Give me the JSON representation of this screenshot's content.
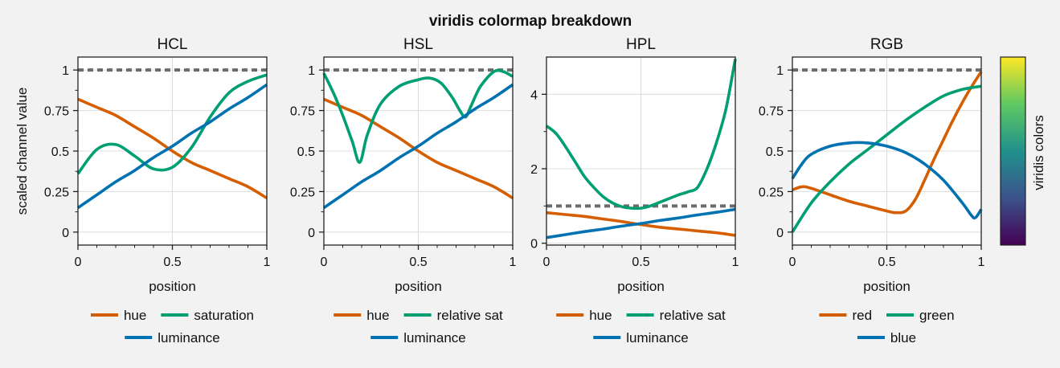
{
  "figure": {
    "title": "viridis colormap breakdown",
    "colorbar": {
      "label": "viridis colors",
      "colormap": "viridis",
      "ticks": false
    }
  },
  "colors": {
    "orange": "#d55e00",
    "green": "#009e73",
    "blue": "#0072b2",
    "reference": "#6b6b6b",
    "grid": "#dcdcdc",
    "background": "#f2f2f2",
    "axes_face": "#ffffff"
  },
  "chart_data": [
    {
      "type": "line",
      "title": "HCL",
      "xlabel": "position",
      "ylabel": "scaled channel value",
      "xlim": [
        0,
        1
      ],
      "ylim": [
        -0.08,
        1.08
      ],
      "xticks": [
        0,
        0.5,
        1
      ],
      "xticklabels": [
        "0",
        "0.5",
        "1"
      ],
      "yticks": [
        0,
        0.25,
        0.5,
        0.75,
        1
      ],
      "yticklabels": [
        "0",
        "0.25",
        "0.5",
        "0.75",
        "1"
      ],
      "grid": true,
      "reference_line": 1,
      "legend": "bottom",
      "x": [
        0,
        0.1,
        0.2,
        0.3,
        0.4,
        0.5,
        0.6,
        0.7,
        0.8,
        0.9,
        1
      ],
      "series": [
        {
          "name": "hue",
          "color": "orange",
          "values": [
            0.82,
            0.77,
            0.72,
            0.65,
            0.58,
            0.5,
            0.43,
            0.38,
            0.33,
            0.28,
            0.21
          ]
        },
        {
          "name": "saturation",
          "color": "green",
          "values": [
            0.36,
            0.51,
            0.54,
            0.47,
            0.39,
            0.4,
            0.52,
            0.71,
            0.86,
            0.93,
            0.97
          ]
        },
        {
          "name": "luminance",
          "color": "blue",
          "values": [
            0.15,
            0.23,
            0.31,
            0.38,
            0.46,
            0.53,
            0.61,
            0.68,
            0.76,
            0.83,
            0.91
          ]
        }
      ]
    },
    {
      "type": "line",
      "title": "HSL",
      "xlabel": "position",
      "ylabel": "",
      "xlim": [
        0,
        1
      ],
      "ylim": [
        -0.08,
        1.08
      ],
      "xticks": [
        0,
        0.5,
        1
      ],
      "xticklabels": [
        "0",
        "0.5",
        "1"
      ],
      "yticks": [
        0,
        0.25,
        0.5,
        0.75,
        1
      ],
      "yticklabels": [
        "0",
        "0.25",
        "0.5",
        "0.75",
        "1"
      ],
      "grid": true,
      "reference_line": 1,
      "legend": "bottom",
      "x": [
        0,
        0.1,
        0.2,
        0.3,
        0.4,
        0.5,
        0.6,
        0.7,
        0.8,
        0.9,
        1
      ],
      "series": [
        {
          "name": "hue",
          "color": "orange",
          "values": [
            0.82,
            0.77,
            0.72,
            0.65,
            0.58,
            0.5,
            0.43,
            0.38,
            0.33,
            0.28,
            0.21
          ]
        },
        {
          "name": "relative sat",
          "color": "green",
          "x": [
            0,
            0.05,
            0.1,
            0.15,
            0.19,
            0.23,
            0.3,
            0.4,
            0.5,
            0.56,
            0.62,
            0.68,
            0.72,
            0.75,
            0.78,
            0.83,
            0.9,
            0.95,
            1
          ],
          "values": [
            0.98,
            0.86,
            0.72,
            0.56,
            0.43,
            0.6,
            0.79,
            0.9,
            0.94,
            0.95,
            0.92,
            0.83,
            0.75,
            0.71,
            0.78,
            0.9,
            0.99,
            0.99,
            0.96
          ]
        },
        {
          "name": "luminance",
          "color": "blue",
          "values": [
            0.15,
            0.23,
            0.31,
            0.38,
            0.46,
            0.53,
            0.61,
            0.68,
            0.76,
            0.83,
            0.91
          ]
        }
      ]
    },
    {
      "type": "line",
      "title": "HPL",
      "xlabel": "position",
      "ylabel": "",
      "xlim": [
        0,
        1
      ],
      "ylim": [
        -0.05,
        5
      ],
      "xticks": [
        0,
        0.5,
        1
      ],
      "xticklabels": [
        "0",
        "0.5",
        "1"
      ],
      "yticks": [
        0,
        2,
        4
      ],
      "yticklabels": [
        "0",
        "2",
        "4"
      ],
      "grid": true,
      "reference_line": 1,
      "legend": "bottom",
      "x": [
        0,
        0.1,
        0.2,
        0.3,
        0.4,
        0.5,
        0.6,
        0.7,
        0.8,
        0.9,
        1
      ],
      "series": [
        {
          "name": "hue",
          "color": "orange",
          "values": [
            0.82,
            0.77,
            0.72,
            0.65,
            0.58,
            0.5,
            0.43,
            0.38,
            0.33,
            0.28,
            0.21
          ]
        },
        {
          "name": "relative sat",
          "color": "green",
          "x": [
            0,
            0.05,
            0.1,
            0.15,
            0.2,
            0.25,
            0.3,
            0.35,
            0.4,
            0.45,
            0.5,
            0.55,
            0.6,
            0.65,
            0.7,
            0.75,
            0.8,
            0.85,
            0.9,
            0.95,
            1
          ],
          "values": [
            3.15,
            2.95,
            2.6,
            2.2,
            1.8,
            1.5,
            1.25,
            1.08,
            0.98,
            0.94,
            0.94,
            1.0,
            1.1,
            1.2,
            1.3,
            1.38,
            1.5,
            2.0,
            2.7,
            3.6,
            4.95
          ]
        },
        {
          "name": "luminance",
          "color": "blue",
          "values": [
            0.15,
            0.23,
            0.31,
            0.38,
            0.46,
            0.53,
            0.61,
            0.68,
            0.76,
            0.83,
            0.91
          ]
        }
      ]
    },
    {
      "type": "line",
      "title": "RGB",
      "xlabel": "position",
      "ylabel": "",
      "xlim": [
        0,
        1
      ],
      "ylim": [
        -0.08,
        1.08
      ],
      "xticks": [
        0,
        0.5,
        1
      ],
      "xticklabels": [
        "0",
        "0.5",
        "1"
      ],
      "yticks": [
        0,
        0.25,
        0.5,
        0.75,
        1
      ],
      "yticklabels": [
        "0",
        "0.25",
        "0.5",
        "0.75",
        "1"
      ],
      "grid": true,
      "reference_line": 1,
      "legend": "bottom",
      "x": [
        0,
        0.1,
        0.2,
        0.3,
        0.4,
        0.5,
        0.6,
        0.7,
        0.8,
        0.9,
        1
      ],
      "series": [
        {
          "name": "red",
          "color": "orange",
          "x": [
            0,
            0.05,
            0.1,
            0.2,
            0.3,
            0.4,
            0.5,
            0.55,
            0.6,
            0.65,
            0.7,
            0.75,
            0.8,
            0.85,
            0.9,
            0.95,
            1
          ],
          "values": [
            0.26,
            0.28,
            0.27,
            0.23,
            0.19,
            0.16,
            0.13,
            0.12,
            0.13,
            0.2,
            0.32,
            0.45,
            0.57,
            0.69,
            0.8,
            0.9,
            0.99
          ]
        },
        {
          "name": "green",
          "color": "green",
          "x": [
            0,
            0.1,
            0.2,
            0.3,
            0.4,
            0.5,
            0.6,
            0.7,
            0.8,
            0.9,
            1
          ],
          "values": [
            0.0,
            0.18,
            0.31,
            0.42,
            0.51,
            0.6,
            0.69,
            0.77,
            0.84,
            0.88,
            0.9
          ]
        },
        {
          "name": "blue",
          "color": "blue",
          "x": [
            0,
            0.05,
            0.1,
            0.2,
            0.3,
            0.4,
            0.5,
            0.6,
            0.7,
            0.8,
            0.9,
            0.95,
            0.97,
            1
          ],
          "values": [
            0.33,
            0.42,
            0.48,
            0.53,
            0.55,
            0.55,
            0.53,
            0.49,
            0.42,
            0.32,
            0.18,
            0.1,
            0.09,
            0.14
          ]
        }
      ]
    }
  ]
}
